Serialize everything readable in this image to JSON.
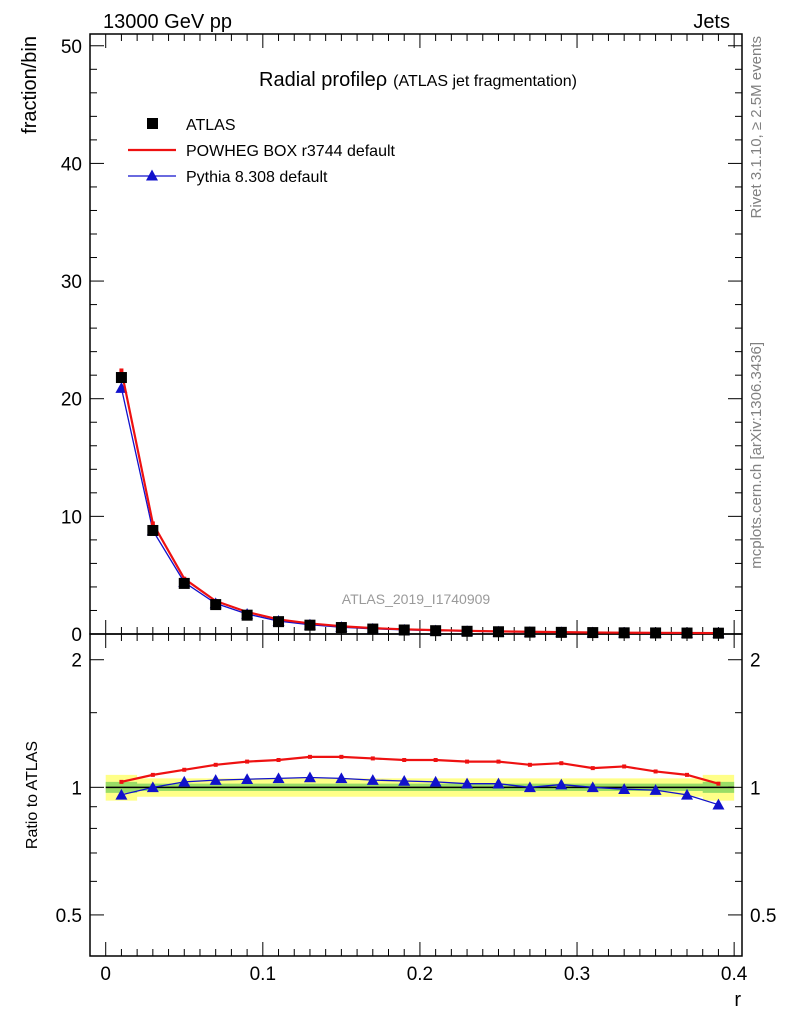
{
  "header": {
    "left": "13000 GeV pp",
    "right": "Jets"
  },
  "side_labels": {
    "rivet": "Rivet 3.1.10, ≥ 2.5M events",
    "mcplots": "mcplots.cern.ch [arXiv:1306.3436]"
  },
  "watermark": "ATLAS_2019_I1740909",
  "chart_data": [
    {
      "type": "line",
      "title": "Radial profile",
      "title_symbol": "ρ",
      "subtitle": "(ATLAS jet fragmentation)",
      "xlabel": "r",
      "ylabel": "fraction/bin",
      "xlim": [
        -0.01,
        0.405
      ],
      "ylim": [
        0,
        51
      ],
      "yticks": [
        0,
        10,
        20,
        30,
        40,
        50
      ],
      "xticks": [
        0,
        0.1,
        0.2,
        0.3,
        0.4
      ],
      "legend_position": "top-left",
      "x": [
        0.01,
        0.03,
        0.05,
        0.07,
        0.09,
        0.11,
        0.13,
        0.15,
        0.17,
        0.19,
        0.21,
        0.23,
        0.25,
        0.27,
        0.29,
        0.31,
        0.33,
        0.35,
        0.37,
        0.39
      ],
      "series": [
        {
          "name": "ATLAS",
          "style": "markers",
          "marker": "square",
          "color": "#000000",
          "values": [
            21.8,
            8.8,
            4.3,
            2.5,
            1.6,
            1.05,
            0.75,
            0.55,
            0.42,
            0.34,
            0.28,
            0.23,
            0.19,
            0.16,
            0.14,
            0.12,
            0.1,
            0.09,
            0.08,
            0.07
          ]
        },
        {
          "name": "POWHEG BOX r3744 default",
          "style": "line",
          "color": "#ee1111",
          "values": [
            22.4,
            9.4,
            4.7,
            2.8,
            1.87,
            1.24,
            0.9,
            0.66,
            0.5,
            0.4,
            0.33,
            0.27,
            0.22,
            0.19,
            0.16,
            0.13,
            0.11,
            0.1,
            0.09,
            0.072
          ]
        },
        {
          "name": "Pythia 8.308 default",
          "style": "line-markers",
          "marker": "triangle",
          "color": "#1111cc",
          "values": [
            20.9,
            8.8,
            4.4,
            2.6,
            1.7,
            1.1,
            0.79,
            0.58,
            0.44,
            0.35,
            0.29,
            0.235,
            0.195,
            0.16,
            0.143,
            0.12,
            0.1,
            0.089,
            0.078,
            0.065
          ]
        }
      ]
    },
    {
      "type": "line",
      "ylabel": "Ratio to ATLAS",
      "xlabel": "r",
      "xlim": [
        -0.01,
        0.405
      ],
      "ylim": [
        0.4,
        2.3
      ],
      "scale": "log",
      "yticks": [
        0.5,
        1,
        2
      ],
      "xticks": [
        0,
        0.1,
        0.2,
        0.3,
        0.4
      ],
      "x": [
        0.01,
        0.03,
        0.05,
        0.07,
        0.09,
        0.11,
        0.13,
        0.15,
        0.17,
        0.19,
        0.21,
        0.23,
        0.25,
        0.27,
        0.29,
        0.31,
        0.33,
        0.35,
        0.37,
        0.39
      ],
      "band": {
        "inner_color": "#99dd66",
        "outer_color": "#ffff88",
        "inner": [
          0.03,
          0.02,
          0.02,
          0.02,
          0.02,
          0.02,
          0.02,
          0.02,
          0.02,
          0.02,
          0.02,
          0.02,
          0.02,
          0.02,
          0.02,
          0.02,
          0.02,
          0.02,
          0.02,
          0.03
        ],
        "outer": [
          0.07,
          0.05,
          0.05,
          0.05,
          0.05,
          0.05,
          0.05,
          0.05,
          0.05,
          0.05,
          0.05,
          0.05,
          0.05,
          0.05,
          0.05,
          0.05,
          0.05,
          0.05,
          0.05,
          0.07
        ]
      },
      "series": [
        {
          "name": "POWHEG BOX r3744 default",
          "color": "#ee1111",
          "marker": "square-small",
          "values": [
            1.03,
            1.07,
            1.1,
            1.13,
            1.15,
            1.16,
            1.18,
            1.18,
            1.17,
            1.16,
            1.16,
            1.15,
            1.15,
            1.13,
            1.14,
            1.11,
            1.12,
            1.09,
            1.07,
            1.02
          ]
        },
        {
          "name": "Pythia 8.308 default",
          "color": "#1111cc",
          "marker": "triangle",
          "values": [
            0.96,
            1.0,
            1.03,
            1.04,
            1.045,
            1.05,
            1.055,
            1.05,
            1.04,
            1.035,
            1.03,
            1.02,
            1.02,
            1.0,
            1.015,
            1.0,
            0.99,
            0.985,
            0.96,
            0.91
          ]
        }
      ]
    }
  ]
}
